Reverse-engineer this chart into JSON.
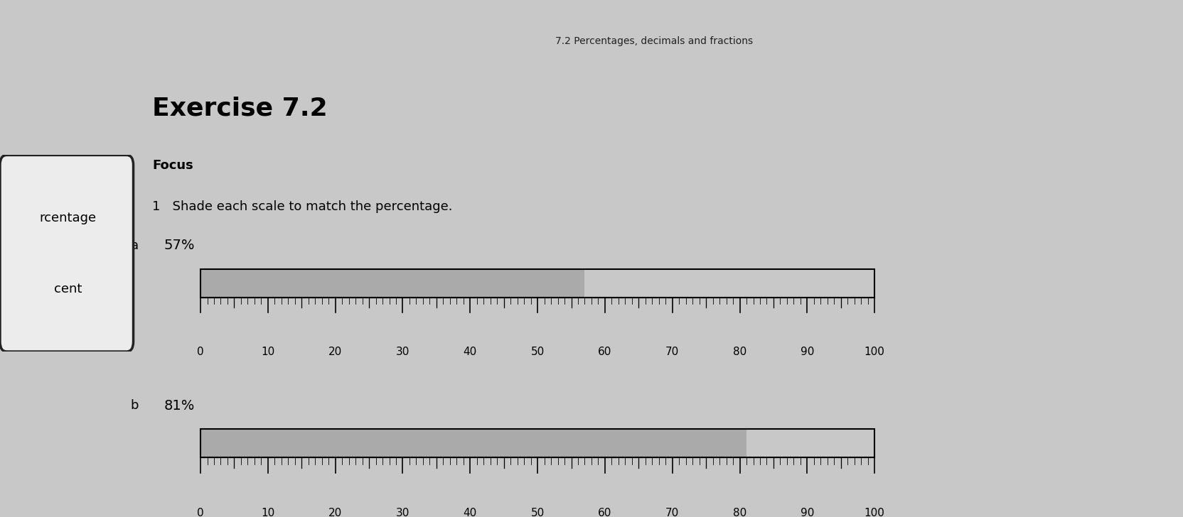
{
  "title": "7.2 Percentages, decimals and fractions",
  "exercise_title": "Exercise 7.2",
  "focus_label": "Focus",
  "instruction": "1   Shade each scale to match the percentage.",
  "scales": [
    {
      "label": "a",
      "percentage_text": "57%",
      "percentage": 57,
      "shade_color": "#aaaaaa"
    },
    {
      "label": "b",
      "percentage_text": "81%",
      "percentage": 81,
      "shade_color": "#aaaaaa"
    }
  ],
  "tick_labels": [
    0,
    10,
    20,
    30,
    40,
    50,
    60,
    70,
    80,
    90,
    100
  ],
  "bg_color": "#c8c8c8",
  "page_bg": "#e0e0e0",
  "white_page_color": "#ececec",
  "left_tab_labels": [
    "rcentage",
    "cent"
  ],
  "title_fontsize": 10,
  "exercise_fontsize": 26,
  "focus_fontsize": 13,
  "instruction_fontsize": 13,
  "label_fontsize": 13,
  "pct_fontsize": 14,
  "tick_label_fontsize": 11
}
